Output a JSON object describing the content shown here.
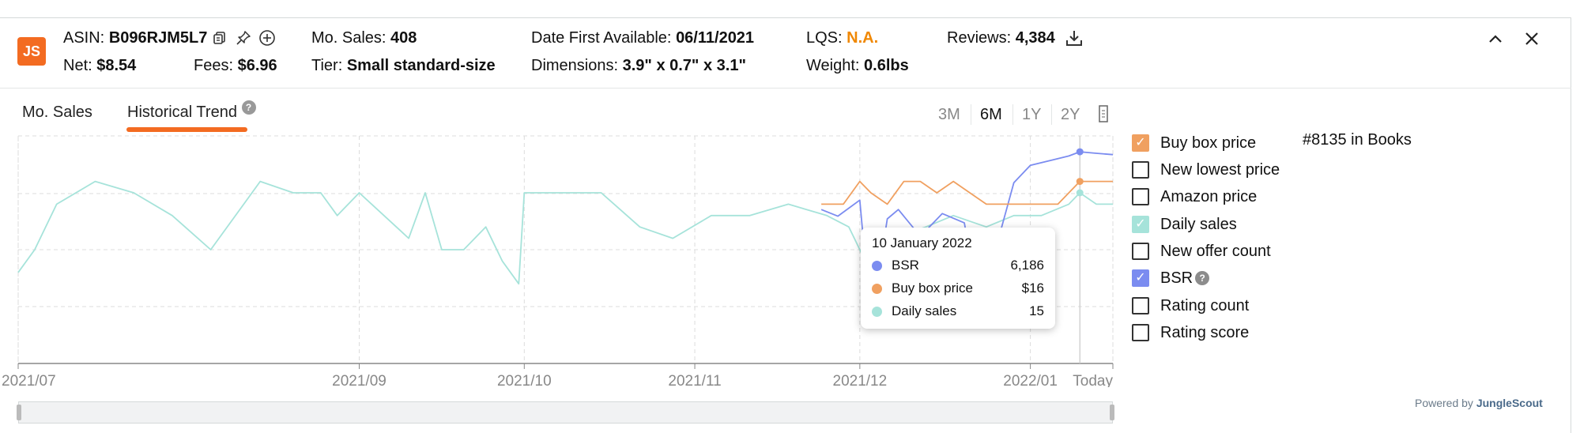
{
  "header": {
    "logo": "JS",
    "asin_label": "ASIN:",
    "asin": "B096RJM5L7",
    "net_label": "Net:",
    "net": "$8.54",
    "fees_label": "Fees:",
    "fees": "$6.96",
    "mo_sales_label": "Mo. Sales:",
    "mo_sales": "408",
    "tier_label": "Tier:",
    "tier": "Small standard-size",
    "date_first_label": "Date First Available:",
    "date_first": "06/11/2021",
    "dimensions_label": "Dimensions:",
    "dimensions": "3.9\" x 0.7\" x 3.1\"",
    "lqs_label": "LQS:",
    "lqs": "N.A.",
    "weight_label": "Weight:",
    "weight": "0.6lbs",
    "reviews_label": "Reviews:",
    "reviews": "4,384",
    "icons": [
      "copy-icon",
      "pin-icon",
      "add-circle-icon",
      "download-icon",
      "chevron-up-icon",
      "close-icon"
    ]
  },
  "tabs": [
    {
      "label": "Mo. Sales",
      "active": false
    },
    {
      "label": "Historical Trend",
      "active": true,
      "help": "?"
    }
  ],
  "ranges": [
    {
      "label": "3M",
      "active": false
    },
    {
      "label": "6M",
      "active": true
    },
    {
      "label": "1Y",
      "active": false
    },
    {
      "label": "2Y",
      "active": false
    }
  ],
  "legend": [
    {
      "label": "Buy box price",
      "checked": true,
      "color": "#f0a060"
    },
    {
      "label": "New lowest price",
      "checked": false,
      "color": "#333333"
    },
    {
      "label": "Amazon price",
      "checked": false,
      "color": "#333333"
    },
    {
      "label": "Daily sales",
      "checked": true,
      "color": "#a6e3da"
    },
    {
      "label": "New offer count",
      "checked": false,
      "color": "#333333"
    },
    {
      "label": "BSR",
      "checked": true,
      "color": "#7b8cf0",
      "help": "?"
    },
    {
      "label": "Rating count",
      "checked": false,
      "color": "#333333"
    },
    {
      "label": "Rating score",
      "checked": false,
      "color": "#333333"
    }
  ],
  "rank": "#8135 in Books",
  "tooltip": {
    "date": "10 January 2022",
    "rows": [
      {
        "label": "BSR",
        "value": "6,186",
        "color": "#7b8cf0"
      },
      {
        "label": "Buy box price",
        "value": "$16",
        "color": "#f0a060"
      },
      {
        "label": "Daily sales",
        "value": "15",
        "color": "#a6e3da"
      }
    ]
  },
  "powered_by": {
    "prefix": "Powered by ",
    "brand": "JungleScout"
  },
  "colors": {
    "accent": "#f36b21",
    "bsr": "#7b8cf0",
    "buy_box": "#f0a060",
    "daily_sales": "#a6e3da"
  },
  "chart_data": {
    "type": "line",
    "x_tick_labels": [
      "2021/07",
      "2021/09",
      "2021/10",
      "2021/11",
      "2021/12",
      "2022/01",
      "Today"
    ],
    "grid": true,
    "series": [
      {
        "name": "Daily sales",
        "color": "#a6e3da",
        "x": [
          "2021-07-01",
          "2021-07-04",
          "2021-07-08",
          "2021-07-15",
          "2021-07-22",
          "2021-07-29",
          "2021-08-05",
          "2021-08-11",
          "2021-08-14",
          "2021-08-20",
          "2021-08-25",
          "2021-08-28",
          "2021-09-01",
          "2021-09-10",
          "2021-09-13",
          "2021-09-16",
          "2021-09-20",
          "2021-09-24",
          "2021-09-27",
          "2021-09-30",
          "2021-10-01",
          "2021-10-05",
          "2021-10-15",
          "2021-10-22",
          "2021-10-28",
          "2021-11-04",
          "2021-11-11",
          "2021-11-18",
          "2021-11-25",
          "2021-11-29",
          "2021-12-02",
          "2021-12-07",
          "2021-12-13",
          "2021-12-18",
          "2021-12-24",
          "2021-12-29",
          "2022-01-03",
          "2022-01-08",
          "2022-01-10",
          "2022-01-13",
          "2022-01-16"
        ],
        "y": [
          8,
          10,
          14,
          16,
          15,
          13,
          10,
          14,
          16,
          15,
          15,
          13,
          15,
          11,
          15,
          10,
          10,
          12,
          9,
          7,
          15,
          15,
          15,
          12,
          11,
          13,
          13,
          14,
          13,
          12,
          9,
          11,
          12,
          13,
          12,
          13,
          13,
          14,
          15,
          14,
          14
        ]
      },
      {
        "name": "BSR",
        "color": "#7b8cf0",
        "x": [
          "2021-11-24",
          "2021-11-27",
          "2021-12-01",
          "2021-12-03",
          "2021-12-06",
          "2021-12-08",
          "2021-12-12",
          "2021-12-16",
          "2021-12-20",
          "2021-12-23",
          "2021-12-26",
          "2021-12-29",
          "2022-01-01",
          "2022-01-05",
          "2022-01-08",
          "2022-01-10",
          "2022-01-13",
          "2022-01-16"
        ],
        "y": [
          10500,
          11000,
          9800,
          19000,
          11200,
          10500,
          12500,
          10800,
          11500,
          18500,
          13000,
          8500,
          7200,
          6800,
          6500,
          6186,
          6300,
          6400
        ]
      },
      {
        "name": "Buy box price",
        "color": "#f0a060",
        "x": [
          "2021-11-24",
          "2021-11-28",
          "2021-12-01",
          "2021-12-03",
          "2021-12-06",
          "2021-12-09",
          "2021-12-12",
          "2021-12-15",
          "2021-12-18",
          "2021-12-21",
          "2021-12-24",
          "2021-12-28",
          "2022-01-02",
          "2022-01-06",
          "2022-01-10",
          "2022-01-13",
          "2022-01-16"
        ],
        "y": [
          14,
          14,
          16,
          15,
          14,
          16,
          16,
          15,
          16,
          15,
          14,
          14,
          14,
          14,
          16,
          16,
          16
        ]
      }
    ],
    "annotations": [
      {
        "x": "2022-01-10",
        "label": "10 January 2022"
      }
    ]
  }
}
